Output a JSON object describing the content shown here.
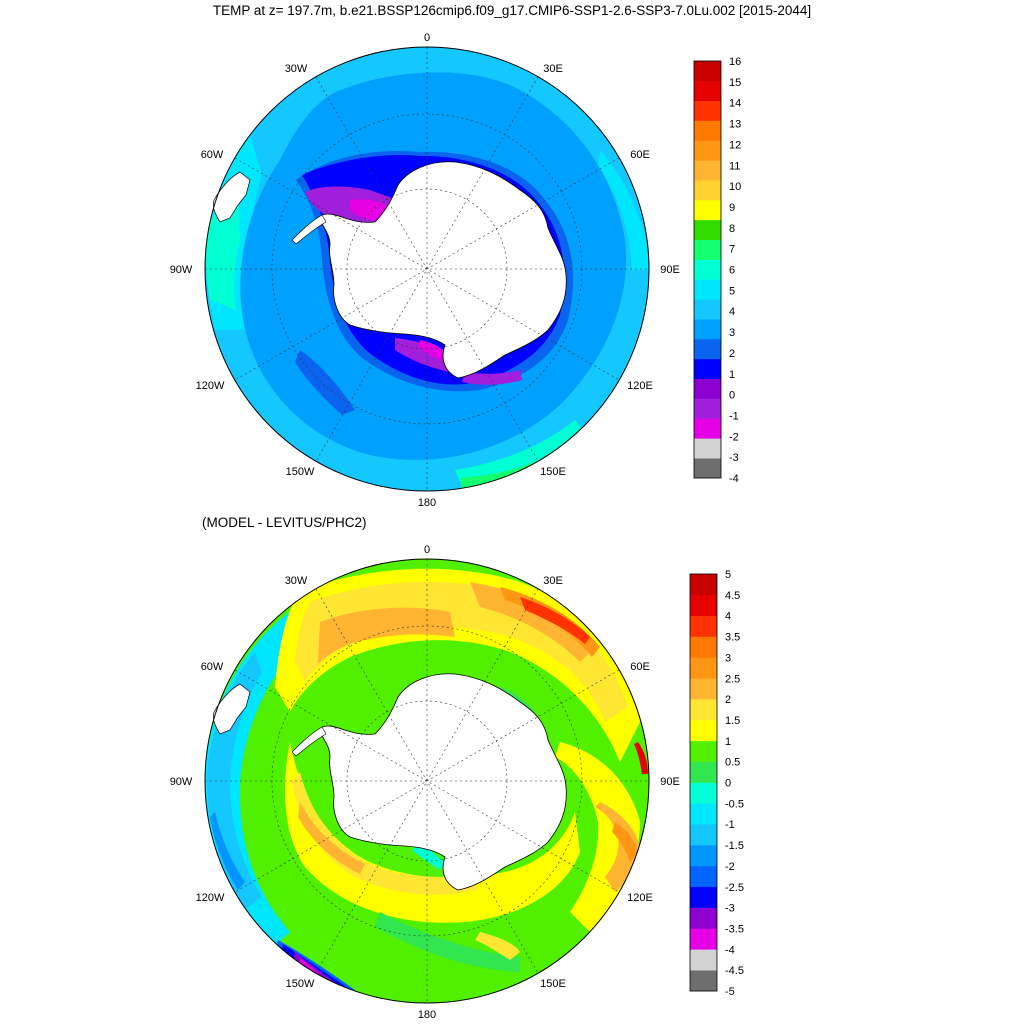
{
  "title": "TEMP at z= 197.7m, b.e21.BSSP126cmip6.f09_g17.CMIP6-SSP1-2.6-SSP3-7.0Lu.002 [2015-2044]",
  "panel2_title": "(MODEL - LEVITUS/PHC2)",
  "lon_labels": {
    "n": "0",
    "nne": "30E",
    "ene": "60E",
    "e": "90E",
    "ese": "120E",
    "sse": "150E",
    "s": "180",
    "ssw": "150W",
    "wsw": "120W",
    "w": "90W",
    "wnw": "60W",
    "nnw": "30W"
  },
  "colors": {
    "land": "#ffffff",
    "coast": "#000000",
    "colorbar1": [
      "#6e6e6e",
      "#d2d2d2",
      "#e600e6",
      "#a01edc",
      "#8c00d2",
      "#0000ff",
      "#0a64f0",
      "#00a0ff",
      "#14c8ff",
      "#00e6ff",
      "#00ffd2",
      "#14ff6e",
      "#32dc00",
      "#ffff00",
      "#ffd232",
      "#ffb432",
      "#ff9614",
      "#ff7800",
      "#ff3200",
      "#e60000",
      "#c80000"
    ],
    "colorbar2": [
      "#6e6e6e",
      "#d2d2d2",
      "#e600e6",
      "#8c00d2",
      "#0000ff",
      "#0064ff",
      "#0096ff",
      "#14c8ff",
      "#00e6ff",
      "#00ffd2",
      "#32e650",
      "#50f000",
      "#ffff00",
      "#ffe632",
      "#ffb432",
      "#ff9614",
      "#ff7800",
      "#ff3200",
      "#e60000",
      "#c80000"
    ]
  },
  "colorbar1": {
    "labels": [
      "16",
      "15",
      "14",
      "13",
      "12",
      "11",
      "10",
      "9",
      "8",
      "7",
      "6",
      "5",
      "4",
      "3",
      "2",
      "1",
      "0",
      "-1",
      "-2",
      "-3",
      "-4"
    ]
  },
  "colorbar2": {
    "labels": [
      "5",
      "4.5",
      "4",
      "3.5",
      "3",
      "2.5",
      "2",
      "1.5",
      "1",
      "0.5",
      "0",
      "-0.5",
      "-1",
      "-1.5",
      "-2",
      "-2.5",
      "-3",
      "-3.5",
      "-4",
      "-4.5",
      "-5"
    ]
  }
}
